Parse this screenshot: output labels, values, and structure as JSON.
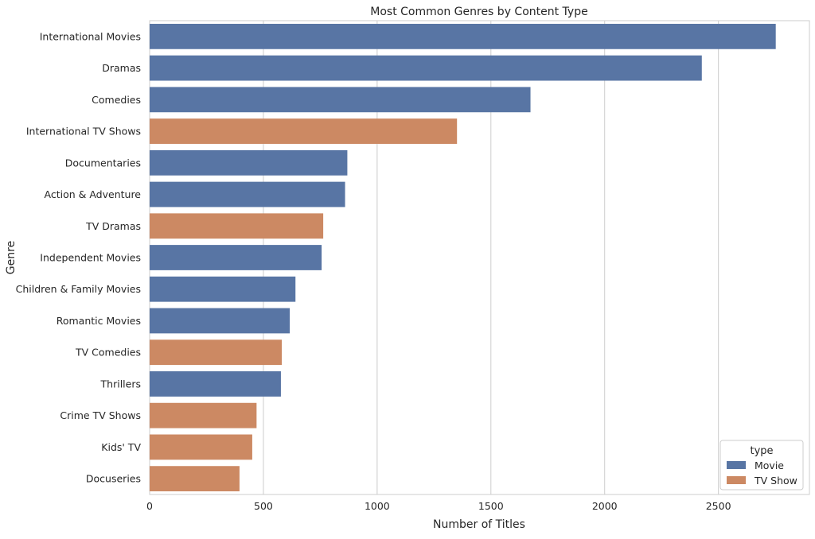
{
  "chart_data": {
    "type": "bar",
    "orientation": "horizontal",
    "title": "Most Common Genres by Content Type",
    "xlabel": "Number of Titles",
    "ylabel": "Genre",
    "xlim": [
      0,
      2900
    ],
    "xticks": [
      0,
      500,
      1000,
      1500,
      2000,
      2500
    ],
    "grid": true,
    "legend": {
      "title": "type",
      "placement": "bottom-right"
    },
    "series": [
      {
        "name": "Movie",
        "color": "#5875a4"
      },
      {
        "name": "TV Show",
        "color": "#cc8963"
      }
    ],
    "categories": [
      "International Movies",
      "Dramas",
      "Comedies",
      "International TV Shows",
      "Documentaries",
      "Action & Adventure",
      "TV Dramas",
      "Independent Movies",
      "Children & Family Movies",
      "Romantic Movies",
      "TV Comedies",
      "Thrillers",
      "Crime TV Shows",
      "Kids' TV",
      "Docuseries"
    ],
    "values": [
      2752,
      2427,
      1674,
      1351,
      869,
      859,
      763,
      756,
      641,
      616,
      581,
      577,
      470,
      451,
      395
    ],
    "types": [
      "Movie",
      "Movie",
      "Movie",
      "TV Show",
      "Movie",
      "Movie",
      "TV Show",
      "Movie",
      "Movie",
      "Movie",
      "TV Show",
      "Movie",
      "TV Show",
      "TV Show",
      "TV Show"
    ]
  }
}
